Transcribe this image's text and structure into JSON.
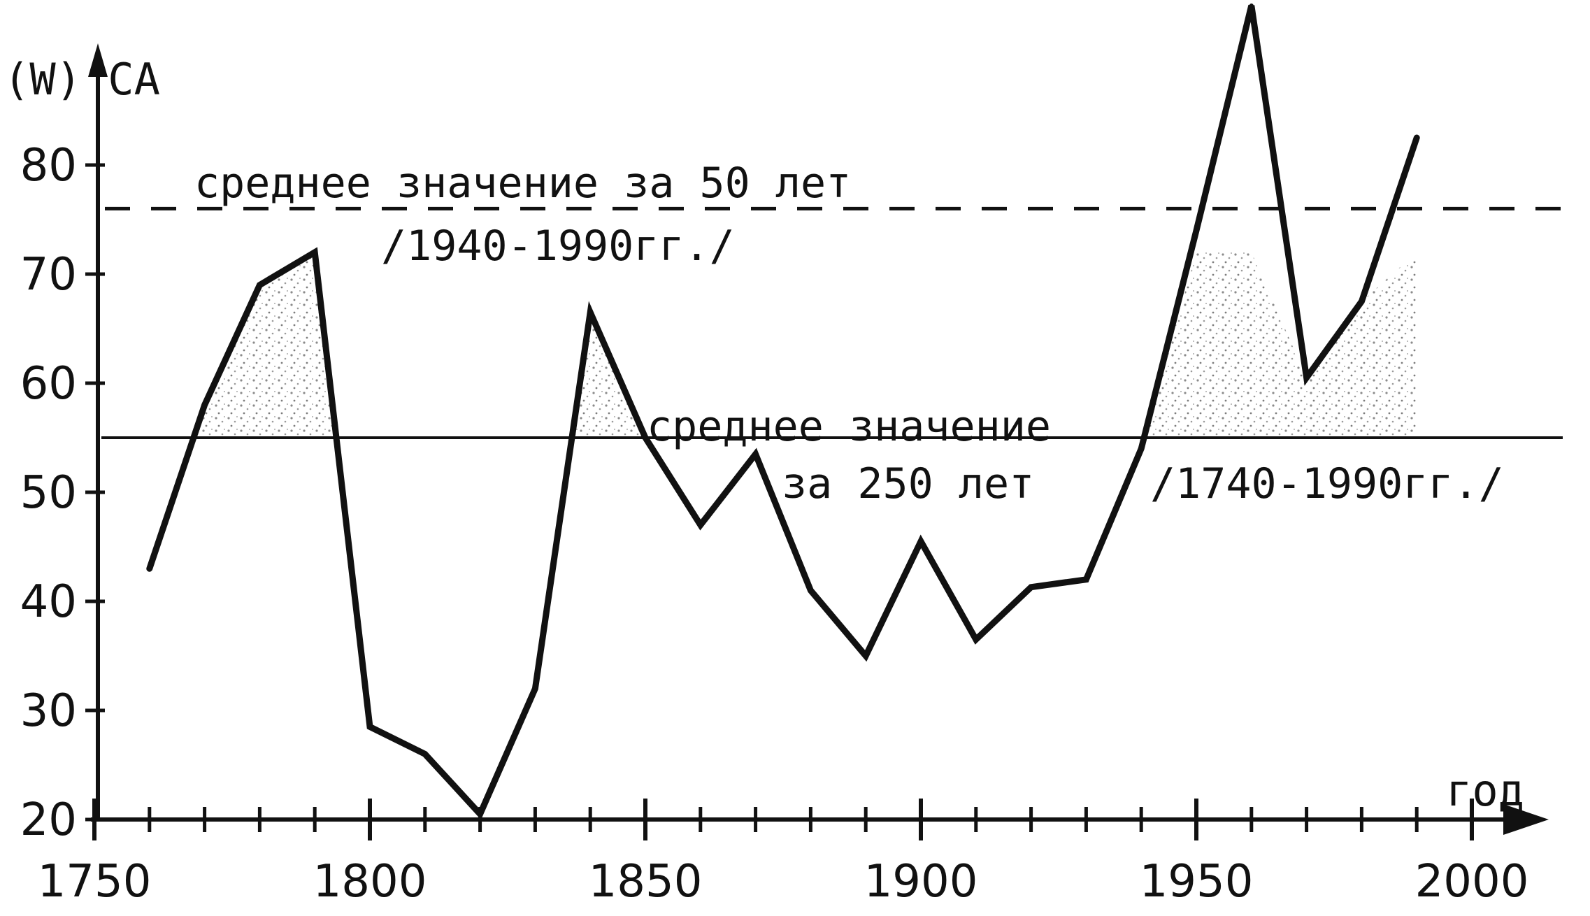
{
  "chart_data": {
    "type": "line",
    "y_axis_label": "(W) CA",
    "x_axis_label": "год",
    "xlim": [
      1750,
      2000
    ],
    "ylim": [
      20,
      80
    ],
    "x_ticks": [
      1750,
      1800,
      1850,
      1900,
      1950,
      2000
    ],
    "y_ticks": [
      20,
      30,
      40,
      50,
      60,
      70,
      80
    ],
    "x_minor_tick_step": 10,
    "x": [
      1760,
      1770,
      1780,
      1790,
      1800,
      1810,
      1820,
      1830,
      1840,
      1850,
      1860,
      1870,
      1880,
      1890,
      1900,
      1910,
      1920,
      1930,
      1940,
      1950,
      1960,
      1970,
      1980,
      1990
    ],
    "series": [
      {
        "values": [
          43,
          58,
          69,
          72,
          28.5,
          26,
          20.5,
          32,
          66.5,
          55,
          47,
          53.5,
          41,
          35,
          45.5,
          36.5,
          41.3,
          42,
          54,
          74,
          100,
          60.5,
          67.5,
          82.5
        ]
      }
    ],
    "reference_lines": [
      {
        "style": "dashed",
        "value": 76,
        "label_line1": "среднее значение за 50 лет",
        "label_line2": "/1940-1990гг./"
      },
      {
        "style": "solid",
        "value": 55,
        "label_line1": "среднее значение",
        "label_line2": "за 250 лет",
        "label_line3": "/1740-1990гг./"
      }
    ]
  }
}
